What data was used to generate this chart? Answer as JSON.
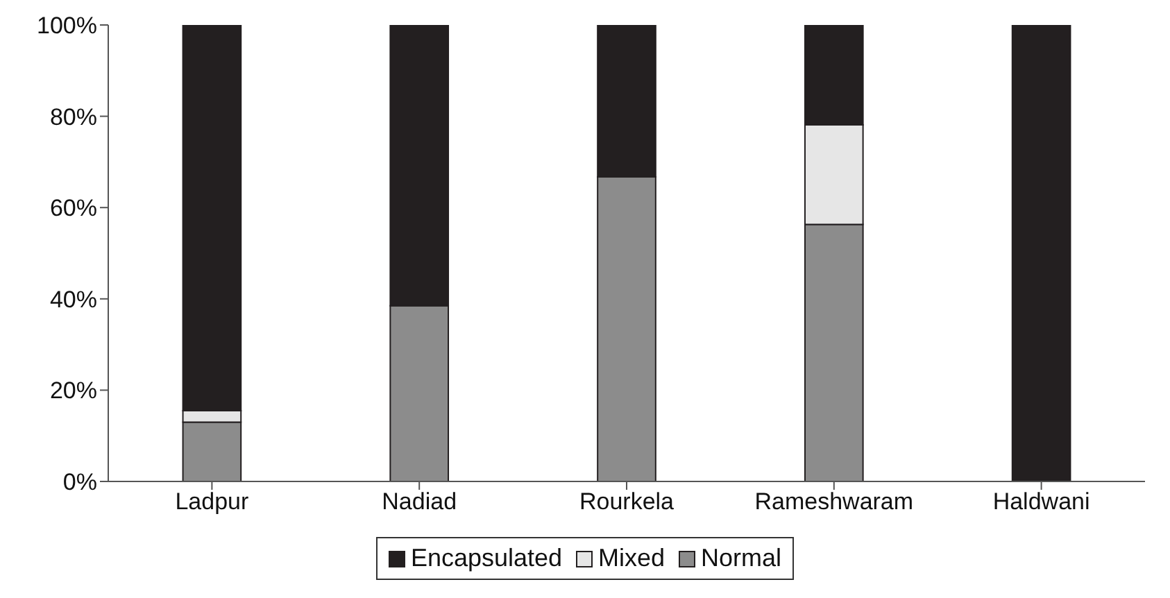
{
  "chart_data": {
    "type": "bar",
    "stacked": true,
    "categories": [
      "Ladpur",
      "Nadiad",
      "Rourkela",
      "Rameshwaram",
      "Haldwani"
    ],
    "series": [
      {
        "name": "Normal",
        "color": "#8c8c8c",
        "values": [
          13,
          38.5,
          66.7,
          56.3,
          0
        ]
      },
      {
        "name": "Mixed",
        "color": "#e6e6e6",
        "values": [
          2.5,
          0,
          0,
          21.8,
          0
        ]
      },
      {
        "name": "Encapsulated",
        "color": "#231f20",
        "values": [
          84.5,
          61.5,
          33.3,
          21.9,
          100
        ]
      }
    ],
    "ylim": [
      0,
      100
    ],
    "yticks": [
      {
        "value": 0,
        "label": "0%"
      },
      {
        "value": 20,
        "label": "20%"
      },
      {
        "value": 40,
        "label": "40%"
      },
      {
        "value": 60,
        "label": "60%"
      },
      {
        "value": 80,
        "label": "80%"
      },
      {
        "value": 100,
        "label": "100%"
      }
    ],
    "grid": false,
    "legend": "bottom"
  }
}
